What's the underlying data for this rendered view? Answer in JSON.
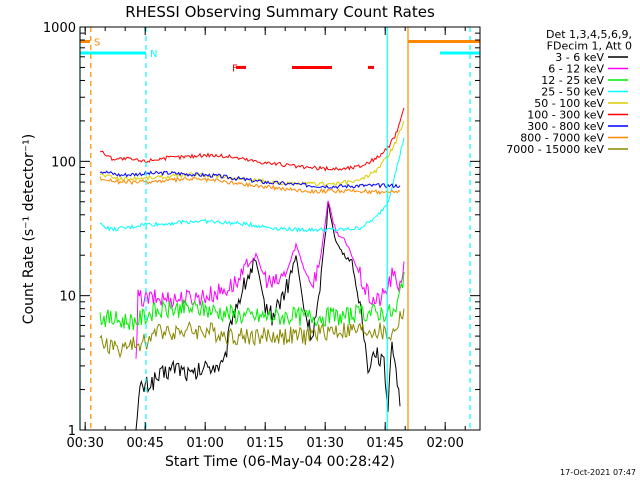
{
  "chart_data": {
    "type": "line",
    "title": "RHESSI Observing Summary Count Rates",
    "xlabel": "Start Time (06-May-04 00:28:42)",
    "ylabel": "Count Rate (s⁻¹ detector⁻¹)",
    "x_unit": "minutes since 00:28:42",
    "xlim": [
      0,
      100
    ],
    "ylim": [
      1,
      1000
    ],
    "yscale": "log",
    "x_ticks": [
      {
        "m": 1.3,
        "label": "00:30"
      },
      {
        "m": 16.3,
        "label": "00:45"
      },
      {
        "m": 31.3,
        "label": "01:00"
      },
      {
        "m": 46.3,
        "label": "01:15"
      },
      {
        "m": 61.3,
        "label": "01:30"
      },
      {
        "m": 76.3,
        "label": "01:45"
      },
      {
        "m": 91.3,
        "label": "02:00"
      }
    ],
    "y_ticks": [
      {
        "v": 1,
        "label": "1"
      },
      {
        "v": 10,
        "label": "10"
      },
      {
        "v": 100,
        "label": "100"
      },
      {
        "v": 1000,
        "label": "1000"
      }
    ],
    "legend_header": [
      "Det 1,3,4,5,6,9,",
      "FDecim 1, Att 0"
    ],
    "legend_placement": "right",
    "series": [
      {
        "name": "3 - 6 keV",
        "color": "#000000",
        "points": [
          [
            14,
            1
          ],
          [
            15,
            2
          ],
          [
            20,
            2.5
          ],
          [
            24,
            3
          ],
          [
            28,
            2.5
          ],
          [
            32,
            3
          ],
          [
            36,
            3
          ],
          [
            38,
            7
          ],
          [
            42,
            14
          ],
          [
            44,
            18
          ],
          [
            46,
            9
          ],
          [
            48,
            7
          ],
          [
            52,
            12
          ],
          [
            54,
            20
          ],
          [
            56,
            8
          ],
          [
            58,
            5
          ],
          [
            60,
            10
          ],
          [
            62,
            50
          ],
          [
            64,
            25
          ],
          [
            66,
            20
          ],
          [
            68,
            18
          ],
          [
            70,
            8
          ],
          [
            72,
            3
          ],
          [
            74,
            4
          ],
          [
            76,
            3
          ],
          [
            77,
            1.5
          ],
          [
            78,
            5
          ],
          [
            79,
            3
          ],
          [
            80,
            1.5
          ]
        ]
      },
      {
        "name": "6 - 12 keV",
        "color": "#ff00ff",
        "points": [
          [
            14,
            3
          ],
          [
            14.5,
            9.5
          ],
          [
            20,
            9.5
          ],
          [
            26,
            9.5
          ],
          [
            32,
            10
          ],
          [
            36,
            11
          ],
          [
            40,
            13
          ],
          [
            42,
            17
          ],
          [
            44,
            20
          ],
          [
            46,
            14
          ],
          [
            48,
            12
          ],
          [
            50,
            13
          ],
          [
            52,
            16
          ],
          [
            54,
            24
          ],
          [
            56,
            16
          ],
          [
            58,
            12
          ],
          [
            60,
            18
          ],
          [
            62,
            50
          ],
          [
            64,
            30
          ],
          [
            66,
            26
          ],
          [
            68,
            20
          ],
          [
            70,
            14
          ],
          [
            72,
            10
          ],
          [
            74,
            9
          ],
          [
            76,
            10
          ],
          [
            78,
            14
          ],
          [
            80,
            12
          ],
          [
            81,
            18
          ]
        ]
      },
      {
        "name": "12 - 25 keV",
        "color": "#00ee00",
        "points": [
          [
            5,
            7
          ],
          [
            10,
            6.5
          ],
          [
            14,
            6.5
          ],
          [
            18,
            7.5
          ],
          [
            24,
            8
          ],
          [
            30,
            8
          ],
          [
            36,
            7.5
          ],
          [
            42,
            7
          ],
          [
            48,
            7
          ],
          [
            54,
            7
          ],
          [
            60,
            7
          ],
          [
            66,
            7
          ],
          [
            72,
            7.5
          ],
          [
            76,
            7.5
          ],
          [
            79,
            7.5
          ],
          [
            81,
            15
          ]
        ]
      },
      {
        "name": "25 - 50 keV",
        "color": "#00ffff",
        "points": [
          [
            5,
            34
          ],
          [
            8,
            31
          ],
          [
            12,
            32
          ],
          [
            16,
            34
          ],
          [
            20,
            34
          ],
          [
            24,
            35
          ],
          [
            30,
            36
          ],
          [
            36,
            35
          ],
          [
            42,
            34
          ],
          [
            48,
            32
          ],
          [
            54,
            31
          ],
          [
            60,
            31
          ],
          [
            66,
            31
          ],
          [
            70,
            32
          ],
          [
            74,
            38
          ],
          [
            77,
            50
          ],
          [
            79,
            85
          ],
          [
            81,
            150
          ]
        ]
      },
      {
        "name": "50 - 100 keV",
        "color": "#ddcc00",
        "points": [
          [
            5,
            80
          ],
          [
            10,
            74
          ],
          [
            16,
            75
          ],
          [
            22,
            77
          ],
          [
            28,
            80
          ],
          [
            34,
            78
          ],
          [
            40,
            74
          ],
          [
            46,
            71
          ],
          [
            52,
            68
          ],
          [
            58,
            68
          ],
          [
            64,
            68
          ],
          [
            70,
            72
          ],
          [
            74,
            85
          ],
          [
            77,
            110
          ],
          [
            79,
            140
          ],
          [
            81,
            200
          ]
        ]
      },
      {
        "name": "100 - 300 keV",
        "color": "#ff0000",
        "points": [
          [
            5,
            120
          ],
          [
            8,
            105
          ],
          [
            12,
            104
          ],
          [
            16,
            100
          ],
          [
            20,
            105
          ],
          [
            26,
            108
          ],
          [
            32,
            112
          ],
          [
            38,
            108
          ],
          [
            44,
            100
          ],
          [
            50,
            95
          ],
          [
            56,
            90
          ],
          [
            62,
            88
          ],
          [
            66,
            88
          ],
          [
            70,
            92
          ],
          [
            74,
            105
          ],
          [
            77,
            125
          ],
          [
            79,
            160
          ],
          [
            81,
            250
          ]
        ]
      },
      {
        "name": "300 - 800 keV",
        "color": "#0000ff",
        "points": [
          [
            5,
            85
          ],
          [
            10,
            79
          ],
          [
            16,
            81
          ],
          [
            22,
            82
          ],
          [
            28,
            80
          ],
          [
            34,
            78
          ],
          [
            40,
            74
          ],
          [
            46,
            70
          ],
          [
            52,
            68
          ],
          [
            58,
            66
          ],
          [
            64,
            65
          ],
          [
            70,
            66
          ],
          [
            76,
            66
          ],
          [
            80,
            66
          ]
        ]
      },
      {
        "name": "800 - 7000 keV",
        "color": "#ff8800",
        "points": [
          [
            5,
            75
          ],
          [
            10,
            70
          ],
          [
            16,
            70
          ],
          [
            22,
            72
          ],
          [
            28,
            74
          ],
          [
            34,
            72
          ],
          [
            40,
            68
          ],
          [
            46,
            65
          ],
          [
            52,
            62
          ],
          [
            58,
            60
          ],
          [
            64,
            60
          ],
          [
            70,
            60
          ],
          [
            76,
            59
          ],
          [
            80,
            60
          ]
        ]
      },
      {
        "name": "7000 - 15000 keV",
        "color": "#888800",
        "points": [
          [
            5,
            4.5
          ],
          [
            10,
            4
          ],
          [
            16,
            4.5
          ],
          [
            20,
            5.5
          ],
          [
            26,
            5.5
          ],
          [
            32,
            5.5
          ],
          [
            38,
            5
          ],
          [
            44,
            5
          ],
          [
            50,
            5
          ],
          [
            56,
            5
          ],
          [
            62,
            5.5
          ],
          [
            68,
            5.5
          ],
          [
            74,
            5.5
          ],
          [
            78,
            5
          ],
          [
            81,
            8
          ]
        ]
      }
    ],
    "flag_bars": [
      {
        "label": "S",
        "color": "#ff8800",
        "y": 780,
        "segments": [
          [
            0,
            2.5
          ]
        ]
      },
      {
        "label": "N",
        "color": "#00ffff",
        "y": 640,
        "segments": [
          [
            0,
            16.5
          ],
          [
            90,
            100
          ]
        ]
      },
      {
        "label": "",
        "color": "#ff8800",
        "y": 780,
        "segments": [
          [
            82,
            100
          ]
        ]
      },
      {
        "label": "F",
        "color": "#ff0000",
        "y": 500,
        "segments": [
          [
            39,
            41.5
          ],
          [
            53,
            63
          ],
          [
            72,
            73.5
          ]
        ]
      }
    ],
    "vertical_lines": [
      {
        "m": 0,
        "color": "#00ffff",
        "dashed": false
      },
      {
        "m": 2.7,
        "color": "#ff8800",
        "dashed": true
      },
      {
        "m": 16.5,
        "color": "#00ffff",
        "dashed": true
      },
      {
        "m": 76.8,
        "color": "#00ffff",
        "dashed": false
      },
      {
        "m": 82.0,
        "color": "#ff8800",
        "dashed": false
      },
      {
        "m": 97.5,
        "color": "#00ffff",
        "dashed": true
      }
    ],
    "timestamp": "17-Oct-2021 07:47"
  }
}
